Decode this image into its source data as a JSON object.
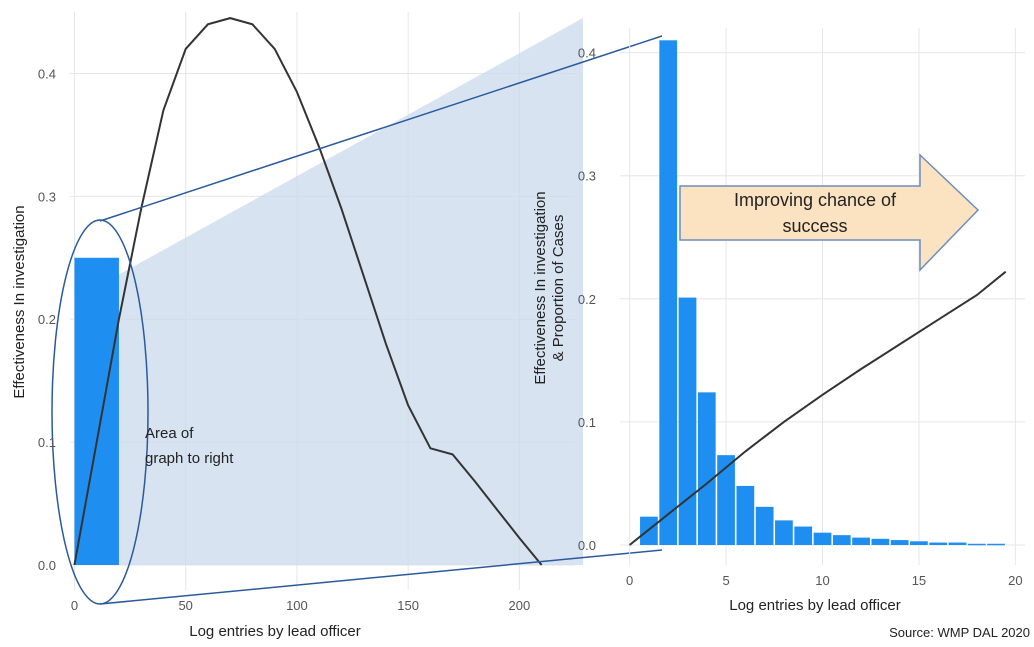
{
  "chart_data": [
    {
      "type": "bar+line",
      "xlabel": "Log entries by lead officer",
      "ylabel": "Effectiveness In investigation",
      "xlim": [
        -2,
        225
      ],
      "ylim": [
        0,
        0.45
      ],
      "x_ticks": [
        0,
        50,
        100,
        150,
        200
      ],
      "y_ticks": [
        0.0,
        0.1,
        0.2,
        0.3,
        0.4
      ],
      "grid": true,
      "bars": [
        {
          "x_start": 0,
          "x_end": 20,
          "value": 0.25
        }
      ],
      "series": [
        {
          "x": [
            0,
            10,
            20,
            30,
            40,
            50,
            60,
            70,
            80,
            90,
            100,
            110,
            120,
            130,
            140,
            150,
            160,
            170,
            180,
            190,
            200,
            210
          ],
          "y": [
            0.0,
            0.1,
            0.2,
            0.29,
            0.37,
            0.42,
            0.44,
            0.445,
            0.44,
            0.42,
            0.385,
            0.34,
            0.29,
            0.235,
            0.18,
            0.13,
            0.095,
            0.09,
            0.068,
            0.045,
            0.022,
            0.0
          ]
        }
      ],
      "annotations": [
        {
          "lines": [
            "Area of",
            "graph to right"
          ]
        }
      ]
    },
    {
      "type": "bar+line",
      "xlabel": "Log entries by lead officer",
      "ylabel_lines": [
        "Effectiveness In investigation",
        "& Proportion of Cases"
      ],
      "xlim": [
        -0.5,
        20.5
      ],
      "ylim": [
        0,
        0.42
      ],
      "x_ticks": [
        0,
        5,
        10,
        15,
        20
      ],
      "y_ticks": [
        0.0,
        0.1,
        0.2,
        0.3,
        0.4
      ],
      "grid": true,
      "categories": [
        1,
        2,
        3,
        4,
        5,
        6,
        7,
        8,
        9,
        10,
        11,
        12,
        13,
        14,
        15,
        16,
        17,
        18,
        19
      ],
      "values": [
        0.023,
        0.41,
        0.201,
        0.124,
        0.073,
        0.048,
        0.031,
        0.02,
        0.015,
        0.01,
        0.008,
        0.006,
        0.005,
        0.004,
        0.003,
        0.002,
        0.002,
        0.001,
        0.001
      ],
      "series": [
        {
          "x": [
            0,
            2,
            4,
            6,
            8,
            10,
            12,
            14,
            16,
            18,
            19.5
          ],
          "y": [
            0.0,
            0.025,
            0.05,
            0.076,
            0.1,
            0.122,
            0.143,
            0.163,
            0.183,
            0.203,
            0.222
          ]
        }
      ]
    }
  ],
  "arrow_label_lines": [
    "Improving chance of",
    "success"
  ],
  "source": "Source: WMP DAL  2020",
  "colors": {
    "bar": "#1f8ef1",
    "line": "#333333",
    "zoom_fill": "#c9d9ec",
    "zoom_stroke": "#2a5a9e",
    "arrow_fill": "#fbe3c2",
    "arrow_stroke": "#6c8ebf"
  }
}
